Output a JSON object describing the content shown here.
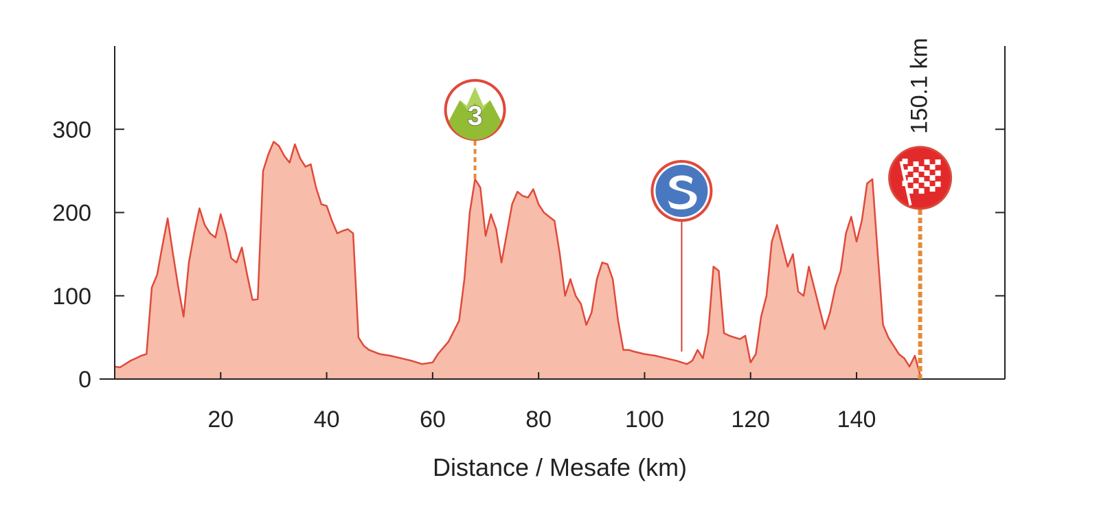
{
  "chart_data": {
    "type": "area",
    "title": "",
    "xlabel": "Distance / Mesafe (km)",
    "ylabel": "",
    "xlim": [
      0,
      168
    ],
    "ylim": [
      0,
      400
    ],
    "x_ticks": [
      20,
      40,
      60,
      80,
      100,
      120,
      140
    ],
    "y_ticks": [
      0,
      100,
      200,
      300
    ],
    "grid": false,
    "fill_color": "#f7bcaa",
    "line_color": "#e0493a",
    "series": [
      {
        "x": [
          0,
          1,
          2,
          3,
          4,
          5,
          6,
          7,
          8,
          9,
          10,
          11,
          12,
          13,
          14,
          15,
          16,
          17,
          18,
          19,
          20,
          21,
          22,
          23,
          24,
          25,
          26,
          27,
          28,
          29,
          30,
          31,
          32,
          33,
          34,
          35,
          36,
          37,
          38,
          39,
          40,
          41,
          42,
          43,
          44,
          45,
          46,
          47,
          48,
          50,
          52,
          54,
          56,
          58,
          60,
          61,
          63,
          65,
          66,
          67,
          68,
          69,
          70,
          71,
          72,
          73,
          74,
          75,
          76,
          77,
          78,
          79,
          80,
          81,
          82,
          83,
          84,
          85,
          86,
          87,
          88,
          89,
          90,
          91,
          92,
          93,
          94,
          95,
          96,
          97,
          98,
          100,
          102,
          104,
          106,
          108,
          109,
          110,
          111,
          112,
          113,
          114,
          115,
          116,
          117,
          118,
          119,
          120,
          121,
          122,
          123,
          124,
          125,
          126,
          127,
          128,
          129,
          130,
          131,
          132,
          133,
          134,
          135,
          136,
          137,
          138,
          139,
          140,
          141,
          142,
          143,
          144,
          145,
          146,
          147,
          148,
          149,
          150,
          151,
          152
        ],
        "y": [
          15,
          14,
          18,
          22,
          25,
          28,
          30,
          110,
          125,
          160,
          193,
          150,
          110,
          75,
          140,
          175,
          205,
          185,
          175,
          170,
          198,
          175,
          145,
          140,
          158,
          125,
          95,
          96,
          250,
          270,
          285,
          280,
          268,
          260,
          282,
          265,
          255,
          258,
          230,
          210,
          208,
          190,
          175,
          178,
          180,
          175,
          50,
          40,
          35,
          30,
          28,
          25,
          22,
          18,
          20,
          30,
          45,
          70,
          120,
          200,
          240,
          230,
          172,
          198,
          180,
          140,
          175,
          210,
          225,
          220,
          218,
          228,
          210,
          200,
          195,
          190,
          150,
          100,
          120,
          100,
          90,
          65,
          80,
          120,
          140,
          138,
          120,
          70,
          35,
          35,
          33,
          30,
          28,
          25,
          22,
          18,
          22,
          35,
          25,
          55,
          135,
          130,
          55,
          52,
          50,
          48,
          52,
          20,
          30,
          75,
          100,
          165,
          185,
          160,
          135,
          150,
          105,
          100,
          135,
          110,
          85,
          60,
          80,
          110,
          130,
          175,
          195,
          165,
          190,
          235,
          240,
          150,
          65,
          50,
          40,
          30,
          25,
          15,
          28,
          5
        ]
      }
    ],
    "annotations": [
      {
        "type": "climb",
        "category": "3",
        "x": 68,
        "y": 240
      },
      {
        "type": "sprint",
        "x": 107
      },
      {
        "type": "finish",
        "x": 152,
        "label": "150.1 km"
      }
    ]
  },
  "icons": {
    "climb": "mountain-climb-icon",
    "sprint": "sprint-icon",
    "finish": "checkered-flag-icon"
  },
  "colors": {
    "marker_border": "#e0493a",
    "climb_green": "#93bc35",
    "sprint_blue": "#4a78c0",
    "finish_red": "#e32a2a",
    "dash_orange": "#e58a3a"
  }
}
